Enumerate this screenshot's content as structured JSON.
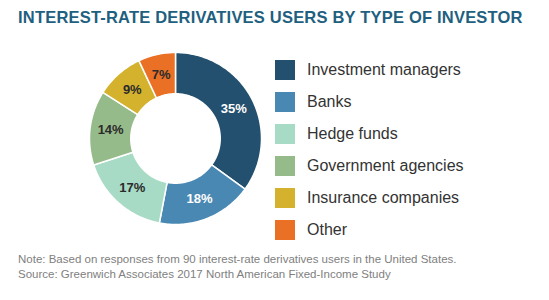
{
  "chart_data": {
    "type": "pie",
    "title": "INTEREST-RATE DERIVATIVES USERS BY TYPE OF INVESTOR",
    "categories": [
      "Investment managers",
      "Banks",
      "Hedge funds",
      "Government agencies",
      "Insurance companies",
      "Other"
    ],
    "values": [
      35,
      18,
      17,
      14,
      9,
      7
    ],
    "value_labels": [
      "35%",
      "18%",
      "17%",
      "14%",
      "9%",
      "7%"
    ],
    "colors": [
      "#23506e",
      "#4a88b4",
      "#a8dbc5",
      "#96bb8a",
      "#d4b22d",
      "#ea7025"
    ],
    "data_labels": true,
    "legend": "right",
    "caption": [
      "Note: Based on responses from 90 interest-rate derivatives users in the United States.",
      "Source: Greenwich Associates 2017 North American Fixed-Income Study"
    ]
  }
}
